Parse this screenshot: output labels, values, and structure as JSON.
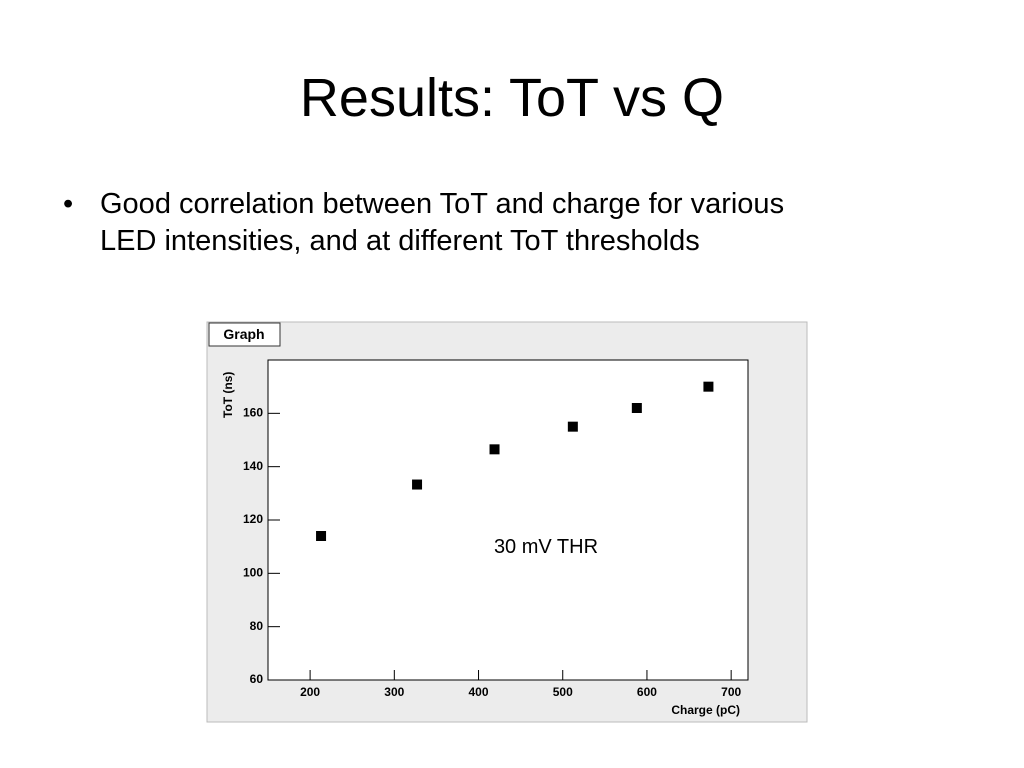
{
  "slide": {
    "title": "Results: ToT vs Q",
    "bullets": [
      "Good correlation between ToT and charge for various",
      "LED intensities, and at different ToT thresholds"
    ]
  },
  "chart_data": {
    "type": "scatter",
    "title": "Graph",
    "x_label": "Charge (pC)",
    "y_label": "ToT (ns)",
    "annotation": "30 mV THR",
    "x": [
      213,
      327,
      419,
      512,
      588,
      673
    ],
    "values": [
      114,
      133.3,
      146.5,
      155,
      162,
      170
    ],
    "color": "#000000",
    "xlim": [
      150,
      720
    ],
    "xticks": [
      200,
      300,
      400,
      500,
      600,
      700
    ],
    "ylim": [
      60,
      180
    ],
    "yticks": [
      60,
      80,
      100,
      120,
      140,
      160
    ],
    "grid": false
  }
}
